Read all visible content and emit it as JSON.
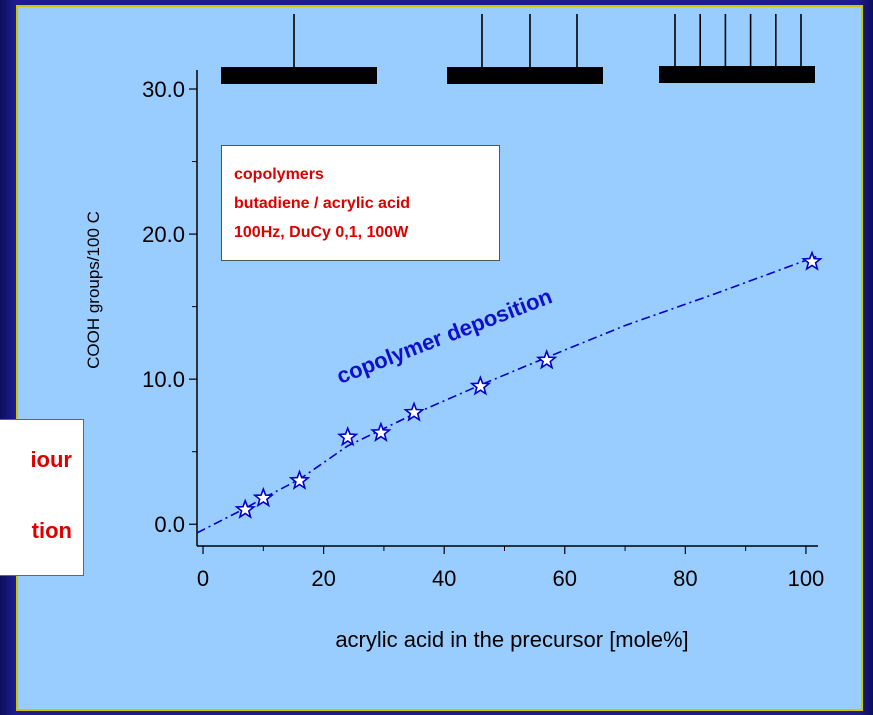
{
  "side_note": {
    "line1": "iour",
    "line2": "tion"
  },
  "legend": {
    "lines": [
      "copolymers",
      "butadiene / acrylic acid",
      "100Hz, DuCy 0,1, 100W"
    ]
  },
  "colors": {
    "panel": "#99ccff",
    "frame": "#c8c800",
    "slide": "#1c1c8a",
    "legend_text": "#dd0000",
    "series": "#0000cc"
  },
  "chart_data": {
    "type": "scatter",
    "xlabel": "acrylic acid in the precursor [mole%]",
    "ylabel": "COOH groups/100 C",
    "xlim": [
      -1,
      102
    ],
    "ylim": [
      -1.5,
      32
    ],
    "x_ticks": [
      0,
      20,
      40,
      60,
      80,
      100
    ],
    "x_tick_labels": [
      "0",
      "20",
      "40",
      "60",
      "80",
      "100"
    ],
    "y_ticks": [
      0,
      10,
      20,
      30
    ],
    "y_tick_labels": [
      "0.0",
      "10.0",
      "20.0",
      "30.0"
    ],
    "grid": false,
    "annotation": "copolymer deposition",
    "series": [
      {
        "marker": "star",
        "x": [
          7,
          10,
          16,
          24,
          29.5,
          35,
          46,
          57,
          101
        ],
        "y": [
          1.0,
          1.8,
          3.0,
          6.0,
          6.3,
          7.7,
          9.5,
          11.3,
          18.1
        ]
      }
    ],
    "fit_line": {
      "style": "dash-dot",
      "x": [
        -1,
        7,
        10,
        16,
        24,
        30,
        35,
        46,
        57,
        70,
        85,
        102
      ],
      "y": [
        -0.6,
        1.1,
        1.8,
        3.1,
        5.4,
        6.6,
        7.6,
        9.6,
        11.5,
        13.7,
        15.9,
        18.5
      ]
    },
    "structure_icons": [
      {
        "branches": 1
      },
      {
        "branches": 3
      },
      {
        "branches": 6
      }
    ]
  }
}
